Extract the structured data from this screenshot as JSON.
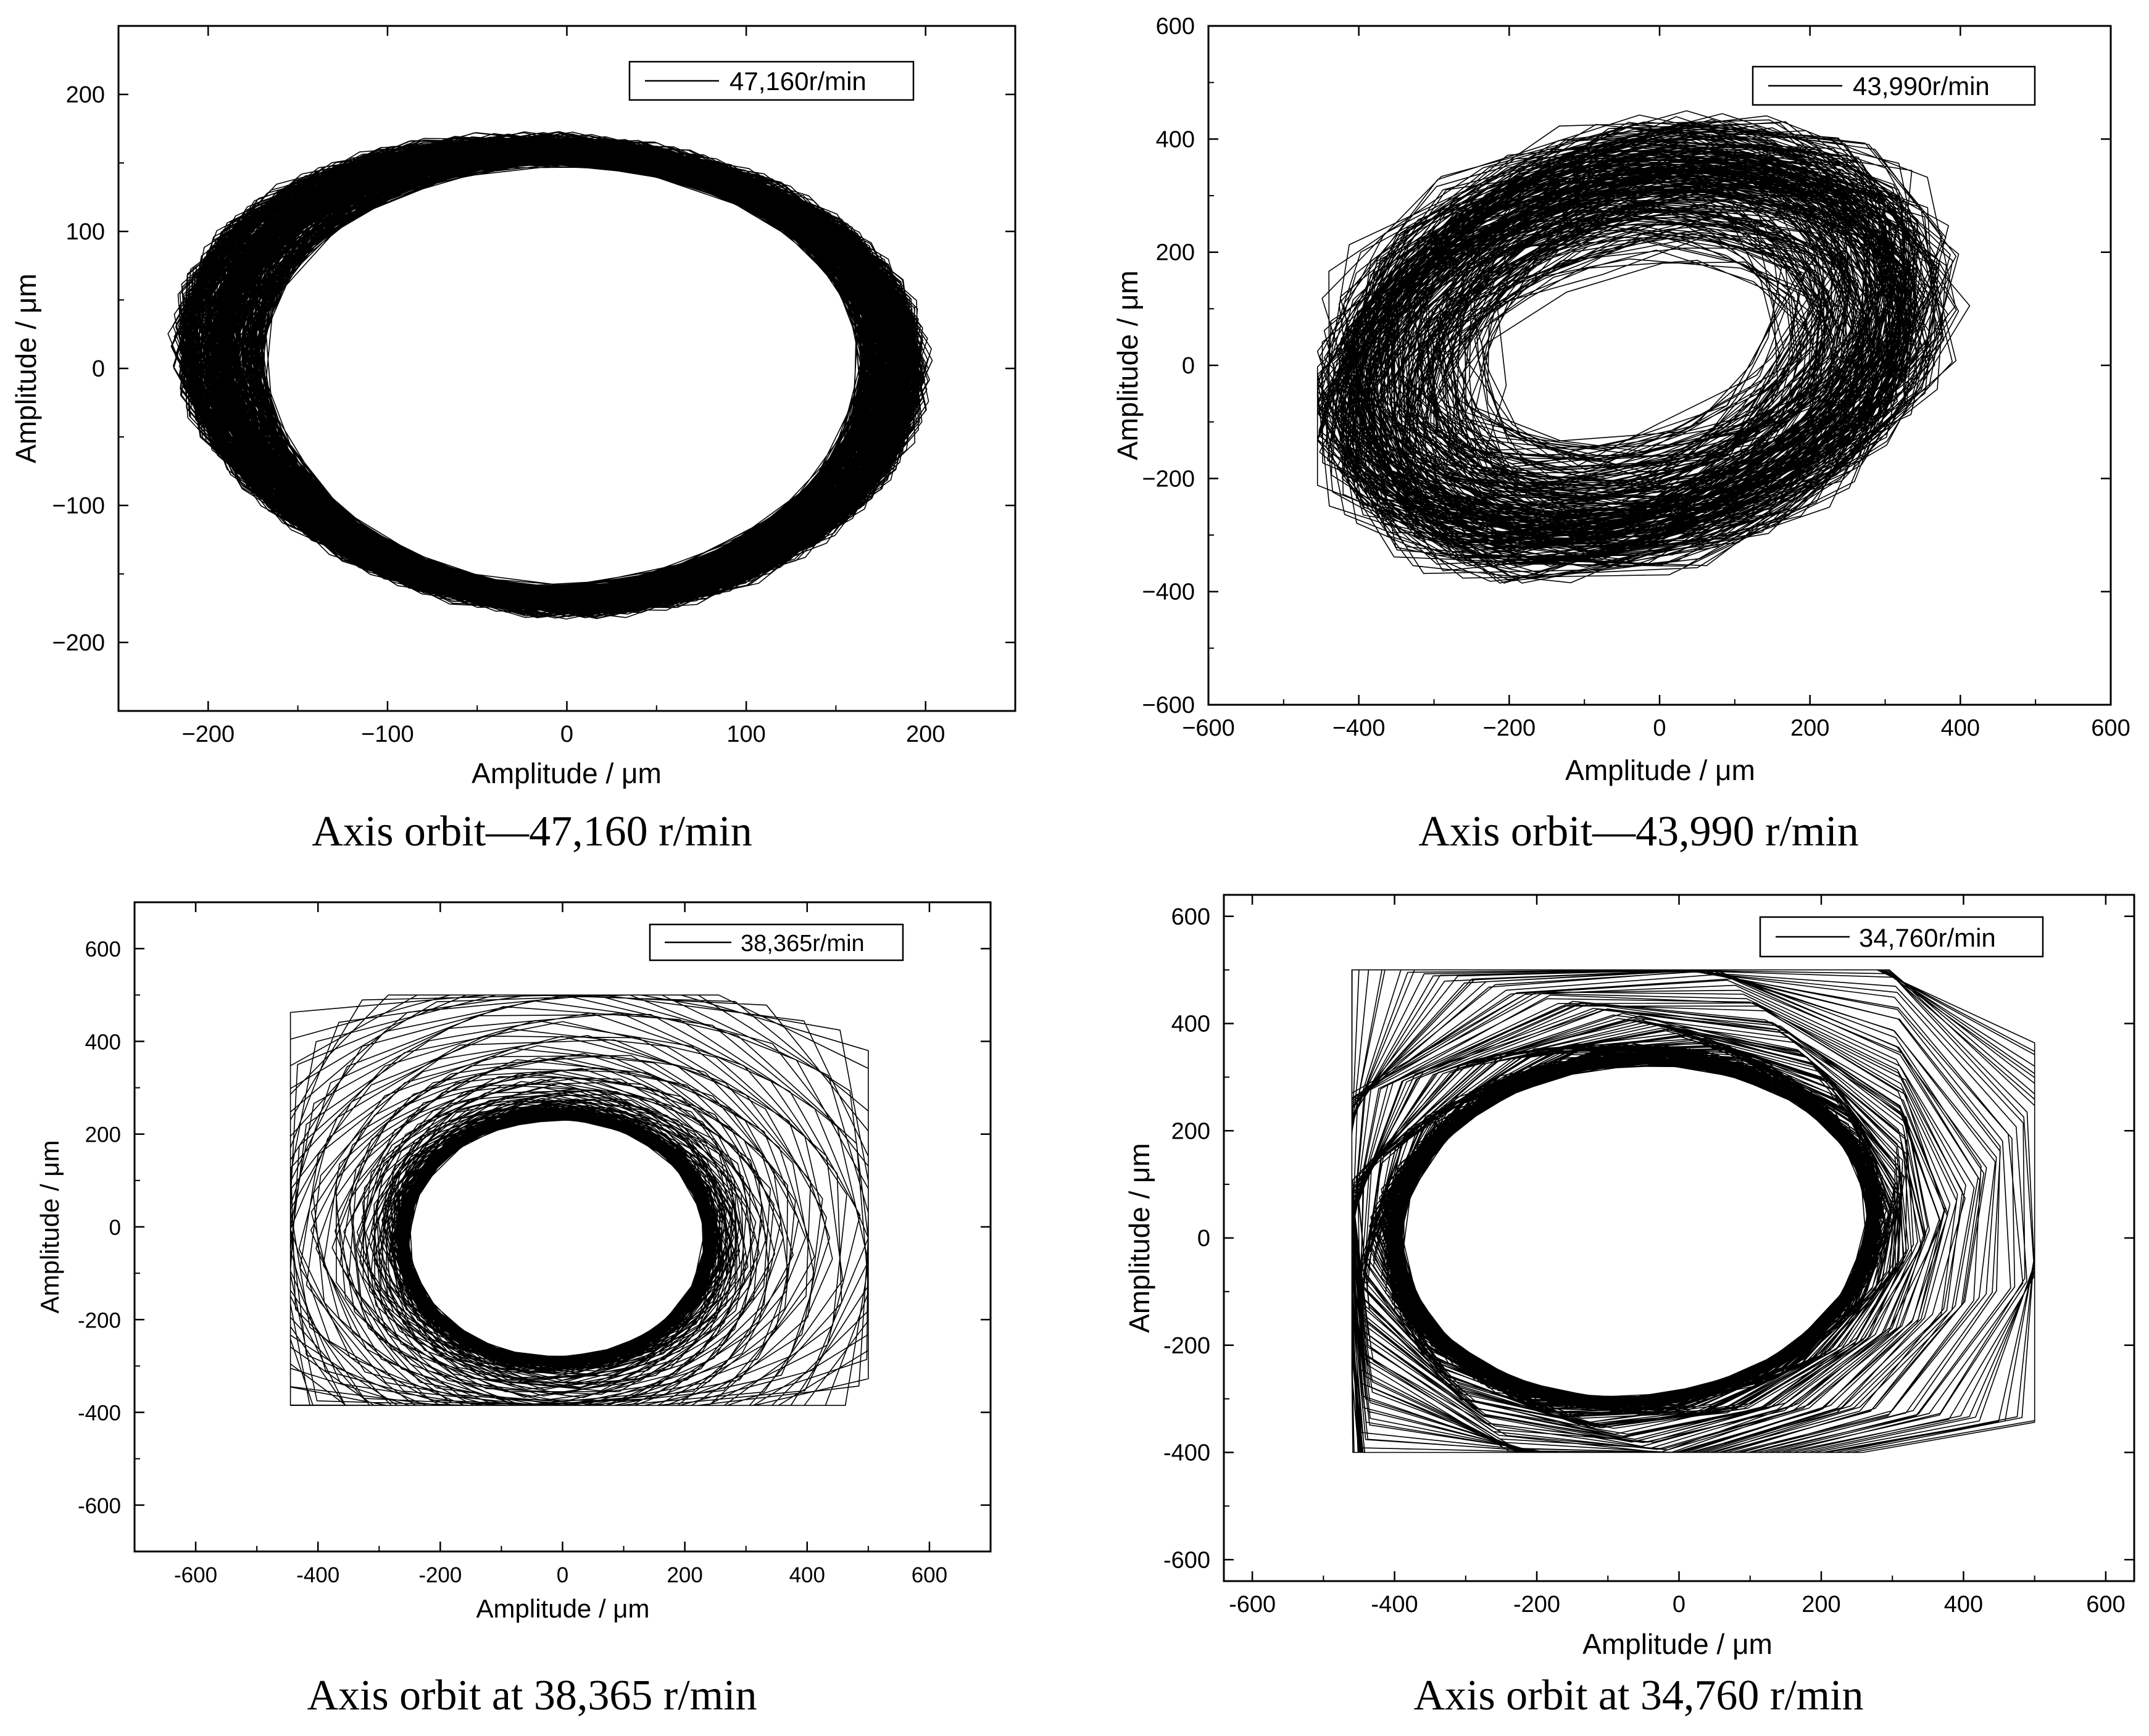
{
  "chart_data": [
    {
      "type": "line",
      "panel": "top-left",
      "caption": "Axis orbit—47,160 r/min",
      "xlabel": "Amplitude / μm",
      "ylabel": "Amplitude / μm",
      "xlim": [
        -250,
        250
      ],
      "ylim": [
        -250,
        250
      ],
      "xticks": [
        -200,
        -100,
        0,
        100,
        200
      ],
      "yticks": [
        -200,
        -100,
        0,
        100,
        200
      ],
      "xtick_labels": [
        "−200",
        "−100",
        "0",
        "100",
        "200"
      ],
      "ytick_labels": [
        "−200",
        "−100",
        "0",
        "100",
        "200"
      ],
      "legend": "top-right",
      "grid": false,
      "series": [
        {
          "name": "47,160r/min",
          "shape": "precessing elliptical orbit",
          "center": [
            0,
            -5
          ],
          "rx": 200,
          "ry": 170,
          "rx_min": 178,
          "ry_min": 160,
          "orientation": "horizontal ellipse, tilted loops",
          "x_range": [
            -210,
            200
          ],
          "y_range": [
            -190,
            185
          ],
          "color": "#000000"
        }
      ]
    },
    {
      "type": "line",
      "panel": "top-right",
      "caption": "Axis orbit—43,990 r/min",
      "xlabel": "Amplitude / μm",
      "ylabel": "Amplitude / μm",
      "xlim": [
        -600,
        600
      ],
      "ylim": [
        -600,
        600
      ],
      "xticks": [
        -600,
        -400,
        -200,
        0,
        200,
        400,
        600
      ],
      "yticks": [
        -600,
        -400,
        -200,
        0,
        200,
        400,
        600
      ],
      "xtick_labels": [
        "−600",
        "−400",
        "−200",
        "0",
        "200",
        "400",
        "600"
      ],
      "ytick_labels": [
        "−600",
        "−400",
        "−200",
        "0",
        "200",
        "400",
        "600"
      ],
      "legend": "top-right",
      "grid": false,
      "series": [
        {
          "name": "43,990r/min",
          "shape": "chaotic spiral orbit",
          "center": [
            -20,
            20
          ],
          "x_range": [
            -450,
            430
          ],
          "y_range": [
            -385,
            450
          ],
          "inner_loop": {
            "center": [
              -50,
              40
            ],
            "rx": 170,
            "ry": 120
          },
          "color": "#000000"
        }
      ]
    },
    {
      "type": "line",
      "panel": "bottom-left",
      "caption": "Axis orbit at 38,365 r/min",
      "xlabel": "Amplitude / μm",
      "ylabel": "Amplitude / μm",
      "xlim": [
        -700,
        700
      ],
      "ylim": [
        -700,
        700
      ],
      "xticks": [
        -600,
        -400,
        -200,
        0,
        200,
        400,
        600
      ],
      "yticks": [
        -600,
        -400,
        -200,
        0,
        200,
        400,
        600
      ],
      "xtick_labels": [
        "-600",
        "-400",
        "-200",
        "0",
        "200",
        "400",
        "600"
      ],
      "ytick_labels": [
        "-600",
        "-400",
        "-200",
        "0",
        "200",
        "400",
        "600"
      ],
      "legend": "top-right",
      "grid": false,
      "series": [
        {
          "name": "38,365r/min",
          "shape": "saturated box spiraling into circular orbit",
          "center": [
            -10,
            -20
          ],
          "outer_box": {
            "x": [
              -445,
              500
            ],
            "y": [
              -385,
              500
            ]
          },
          "inner_loop": {
            "rx": 250,
            "ry": 265
          },
          "color": "#000000"
        }
      ]
    },
    {
      "type": "line",
      "panel": "bottom-right",
      "caption": "Axis orbit at 34,760 r/min",
      "xlabel": "Amplitude / μm",
      "ylabel": "Amplitude / μm",
      "xlim": [
        -640,
        640
      ],
      "ylim": [
        -640,
        640
      ],
      "xticks": [
        -600,
        -400,
        -200,
        0,
        200,
        400,
        600
      ],
      "yticks": [
        -600,
        -400,
        -200,
        0,
        200,
        400,
        600
      ],
      "xtick_labels": [
        "-600",
        "-400",
        "-200",
        "0",
        "200",
        "400",
        "600"
      ],
      "ytick_labels": [
        "-600",
        "-400",
        "-200",
        "0",
        "200",
        "400",
        "600"
      ],
      "legend": "top-right",
      "grid": false,
      "series": [
        {
          "name": "34,760r/min",
          "shape": "saturated box with tilted teardrop orbit",
          "center": [
            -20,
            -20
          ],
          "outer_box": {
            "x": [
              -460,
              500
            ],
            "y": [
              -400,
              500
            ]
          },
          "inner_loop": {
            "rx": 370,
            "ry": 330
          },
          "color": "#000000"
        }
      ]
    }
  ]
}
